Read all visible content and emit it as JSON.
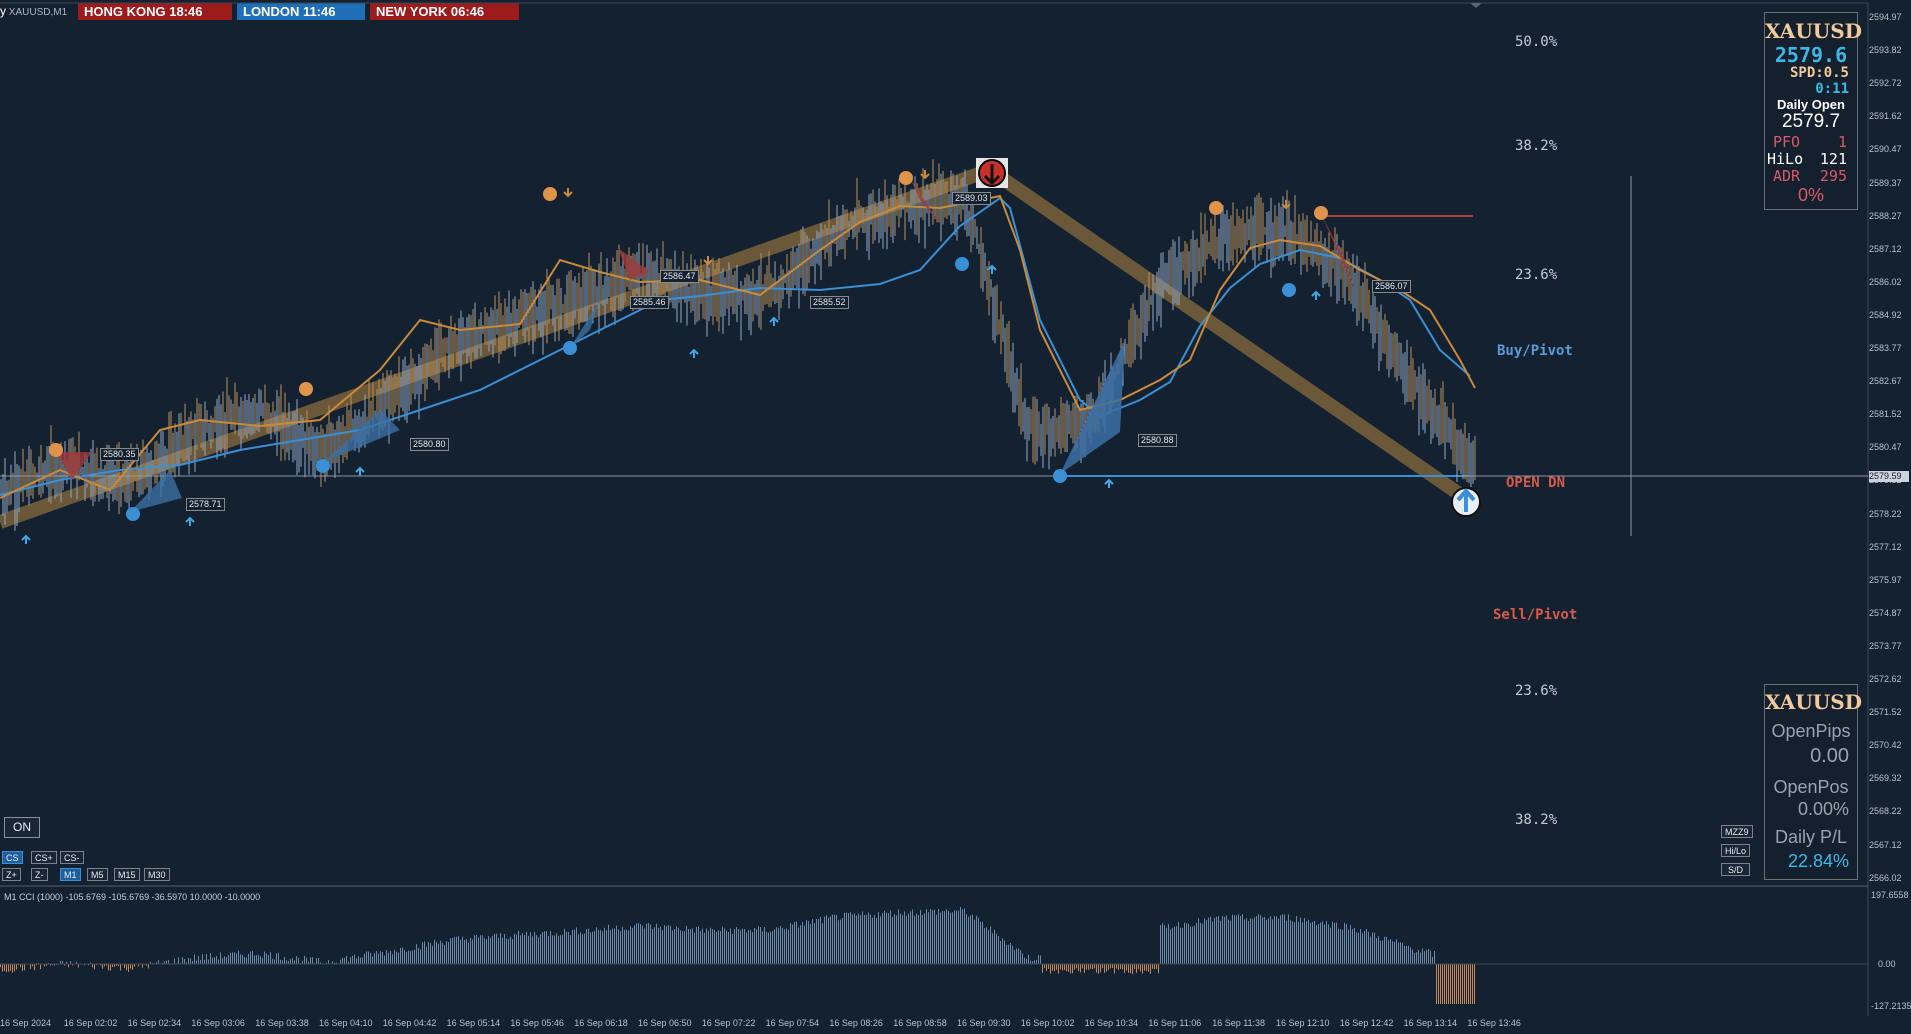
{
  "symbol_title": "XAUUSD,M1",
  "clocks": [
    {
      "label": "HONG KONG 18:46",
      "color": "#9e1b1b"
    },
    {
      "label": "LONDON  11:46",
      "color": "#1f6fb8"
    },
    {
      "label": "NEW YORK  06:46",
      "color": "#9e1b1b"
    }
  ],
  "fib_levels": [
    "50.0%",
    "38.2%",
    "23.6%",
    "23.6%",
    "38.2%"
  ],
  "pivot_labels": {
    "buy": "Buy/Pivot",
    "open": "OPEN DN",
    "sell": "Sell/Pivot"
  },
  "price_tags": [
    "2580.35",
    "2578.71",
    "2580.80",
    "2585.46",
    "2586.47",
    "2585.52",
    "2589.03",
    "2580.88",
    "2586.07"
  ],
  "y_axis_ticks": [
    "2594.97",
    "2593.82",
    "2592.72",
    "2591.62",
    "2590.47",
    "2589.37",
    "2588.27",
    "2587.12",
    "2586.02",
    "2584.92",
    "2583.77",
    "2582.67",
    "2581.52",
    "2580.47",
    "2579.32",
    "2578.22",
    "2577.12",
    "2575.97",
    "2574.87",
    "2573.77",
    "2572.62",
    "2571.52",
    "2570.42",
    "2569.32",
    "2568.22",
    "2567.12",
    "2566.02"
  ],
  "current_price_tag": "2579.59",
  "x_axis_ticks": [
    "16 Sep 2024",
    "16 Sep 02:02",
    "16 Sep 02:34",
    "16 Sep 03:06",
    "16 Sep 03:38",
    "16 Sep 04:10",
    "16 Sep 04:42",
    "16 Sep 05:14",
    "16 Sep 05:46",
    "16 Sep 06:18",
    "16 Sep 06:50",
    "16 Sep 07:22",
    "16 Sep 07:54",
    "16 Sep 08:26",
    "16 Sep 08:58",
    "16 Sep 09:30",
    "16 Sep 10:02",
    "16 Sep 10:34",
    "16 Sep 11:06",
    "16 Sep 11:38",
    "16 Sep 12:10",
    "16 Sep 12:42",
    "16 Sep 13:14",
    "16 Sep 13:46"
  ],
  "info_panel": {
    "symbol": "XAUUSD",
    "price": "2579.6",
    "spread": "SPD:0.5",
    "timer": "0:11",
    "daily_open_label": "Daily Open",
    "daily_open": "2579.7",
    "pfo_label": "PFO",
    "pfo_value": "1",
    "hilo_label": "HiLo",
    "hilo_value": "121",
    "adr_label": "ADR",
    "adr_value": "295",
    "percent": "0%"
  },
  "pl_panel": {
    "symbol": "XAUUSD",
    "open_pips_label": "OpenPips",
    "open_pips": "0.00",
    "open_pos_label": "OpenPos",
    "open_pos": "0.00%",
    "daily_pl_label": "Daily P/L",
    "daily_pl": "22.84%"
  },
  "buttons": {
    "on": "ON",
    "cs": "CS",
    "cs_plus": "CS+",
    "cs_minus": "CS-",
    "z_plus": "Z+",
    "z_minus": "Z-",
    "m1": "M1",
    "m5": "M5",
    "m15": "M15",
    "m30": "M30",
    "mzz9": "MZZ9",
    "hilo": "Hi/Lo",
    "sd": "S/D"
  },
  "cci": {
    "label": "M1 CCI (1000) -105.6769 -105.6769 -36.5970 10.0000 -10.0000",
    "ticks": [
      "197.6558",
      "0.00",
      "-127.2135"
    ]
  },
  "colors": {
    "background": "#142131",
    "up": "#3b8fd4",
    "down": "#c98a3a",
    "trend_band": "#7a6139",
    "text": "#c8d0d8"
  },
  "chart_data": {
    "type": "line",
    "title": "",
    "xlabel": "",
    "ylabel": "",
    "ylim": [
      2566.02,
      2594.97
    ],
    "x": [
      "16 Sep 2024",
      "16 Sep 02:02",
      "16 Sep 02:34",
      "16 Sep 03:06",
      "16 Sep 03:38",
      "16 Sep 04:10",
      "16 Sep 04:42",
      "16 Sep 05:14",
      "16 Sep 05:46",
      "16 Sep 06:18",
      "16 Sep 06:50",
      "16 Sep 07:22",
      "16 Sep 07:54",
      "16 Sep 08:26",
      "16 Sep 08:58",
      "16 Sep 09:30",
      "16 Sep 10:02",
      "16 Sep 10:34",
      "16 Sep 11:06",
      "16 Sep 11:38",
      "16 Sep 12:10",
      "16 Sep 12:42",
      "16 Sep 13:14",
      "16 Sep 13:46"
    ],
    "series": [
      {
        "values": [
          2579.0,
          2580.0,
          2579.3,
          2581.0,
          2581.8,
          2580.3,
          2582.0,
          2584.0,
          2584.8,
          2585.5,
          2586.4,
          2585.6,
          2585.7,
          2587.8,
          2588.6,
          2588.9,
          2581.0,
          2581.5,
          2586.0,
          2587.6,
          2587.8,
          2586.2,
          2582.5,
          2579.6
        ]
      }
    ]
  }
}
